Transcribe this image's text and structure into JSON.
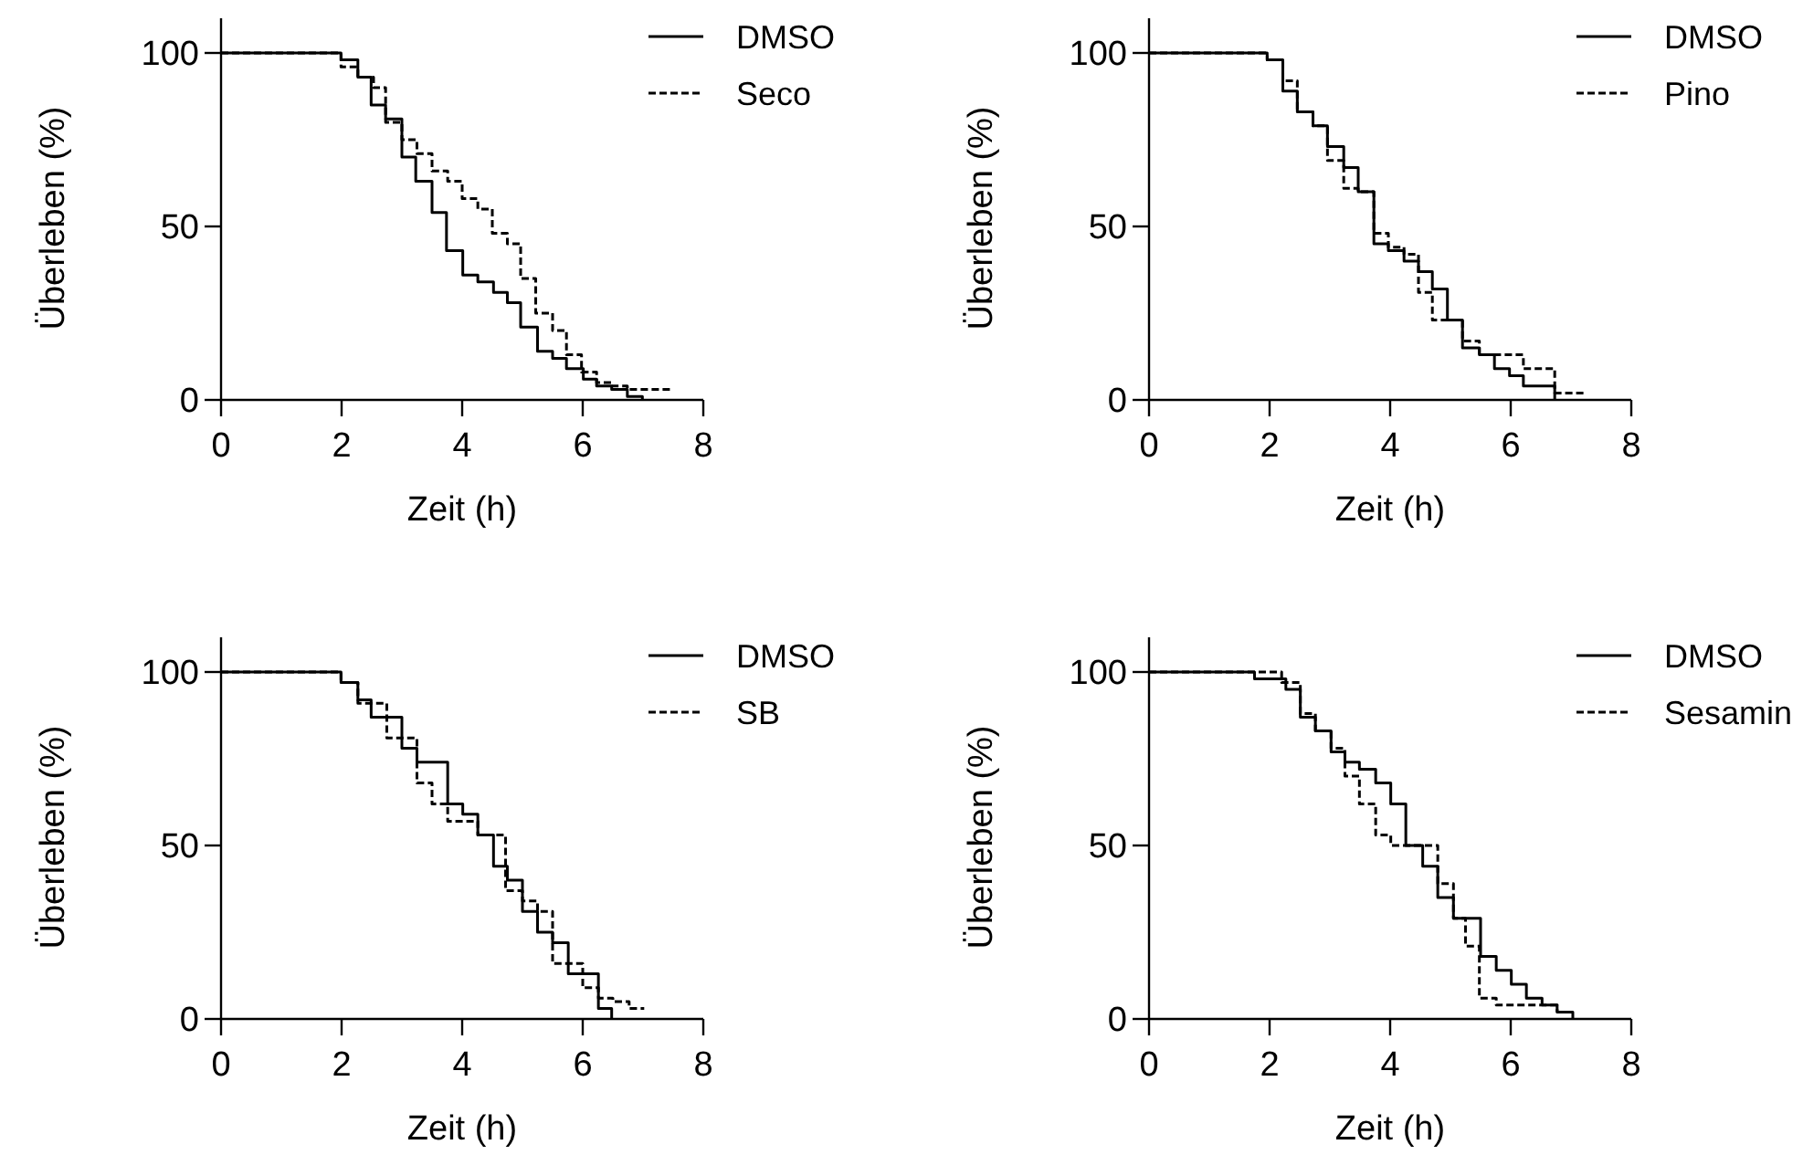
{
  "chart_data": [
    {
      "type": "step",
      "xlabel": "Zeit (h)",
      "ylabel": "Überleben (%)",
      "xlim": [
        0,
        8
      ],
      "xticks": [
        0,
        2,
        4,
        6,
        8
      ],
      "ylim": [
        0,
        110
      ],
      "yticks": [
        0,
        50,
        100
      ],
      "legend": "top right",
      "grid": false,
      "series": [
        {
          "name": "DMSO",
          "color": "#000000",
          "line_style": "solid",
          "x": [
            0,
            1.99,
            2.27,
            2.49,
            2.73,
            3.0,
            3.23,
            3.5,
            3.74,
            4.01,
            4.26,
            4.52,
            4.75,
            4.97,
            5.25,
            5.5,
            5.73,
            6.01,
            6.23,
            6.48,
            6.74,
            6.99
          ],
          "values": [
            100,
            98,
            93,
            85,
            81,
            70,
            63,
            54,
            43,
            36,
            34,
            31,
            28,
            21,
            14,
            12,
            9,
            6,
            4,
            3,
            1,
            0
          ]
        },
        {
          "name": "Seco",
          "color": "#000000",
          "line_style": "dashed",
          "x": [
            0,
            1.99,
            2.27,
            2.53,
            2.73,
            3.0,
            3.25,
            3.5,
            3.76,
            4.0,
            4.26,
            4.5,
            4.75,
            4.97,
            5.22,
            5.5,
            5.73,
            5.98,
            6.23,
            6.48,
            6.74,
            7.5
          ],
          "values": [
            100,
            96,
            93,
            90,
            80,
            75,
            71,
            66,
            63,
            58,
            55,
            48,
            45,
            35,
            25,
            20,
            13,
            8,
            5,
            4,
            3,
            3
          ]
        }
      ]
    },
    {
      "type": "step",
      "xlabel": "Zeit (h)",
      "ylabel": "Überleben (%)",
      "xlim": [
        0,
        8
      ],
      "xticks": [
        0,
        2,
        4,
        6,
        8
      ],
      "ylim": [
        0,
        110
      ],
      "yticks": [
        0,
        50,
        100
      ],
      "legend": "top right",
      "grid": false,
      "series": [
        {
          "name": "DMSO",
          "color": "#000000",
          "line_style": "solid",
          "x": [
            0,
            1.96,
            2.22,
            2.46,
            2.72,
            2.96,
            3.23,
            3.47,
            3.73,
            3.97,
            4.23,
            4.47,
            4.7,
            4.95,
            5.2,
            5.48,
            5.73,
            5.98,
            6.21,
            6.73
          ],
          "values": [
            100,
            98,
            89,
            83,
            79,
            73,
            67,
            60,
            45,
            43,
            40,
            37,
            32,
            23,
            15,
            13,
            9,
            7,
            4,
            0
          ]
        },
        {
          "name": "Pino",
          "color": "#000000",
          "line_style": "dashed",
          "x": [
            0,
            1.96,
            2.22,
            2.46,
            2.72,
            2.96,
            3.23,
            3.47,
            3.73,
            3.97,
            4.23,
            4.47,
            4.7,
            5.2,
            5.48,
            6.21,
            6.73,
            7.22
          ],
          "values": [
            100,
            98,
            92,
            83,
            79,
            69,
            61,
            60,
            48,
            44,
            42,
            31,
            23,
            17,
            13,
            9,
            2,
            2
          ]
        }
      ]
    },
    {
      "type": "step",
      "xlabel": "Zeit (h)",
      "ylabel": "Überleben (%)",
      "xlim": [
        0,
        8
      ],
      "xticks": [
        0,
        2,
        4,
        6,
        8
      ],
      "ylim": [
        0,
        110
      ],
      "yticks": [
        0,
        50,
        100
      ],
      "legend": "top right",
      "grid": false,
      "series": [
        {
          "name": "DMSO",
          "color": "#000000",
          "line_style": "solid",
          "x": [
            0,
            1.99,
            2.27,
            2.49,
            3.0,
            3.25,
            3.76,
            4.01,
            4.26,
            4.52,
            4.75,
            5.0,
            5.25,
            5.5,
            5.76,
            6.26,
            6.48
          ],
          "values": [
            100,
            97,
            92,
            87,
            78,
            74,
            62,
            59,
            53,
            44,
            40,
            31,
            25,
            22,
            13,
            3,
            0
          ]
        },
        {
          "name": "SB",
          "color": "#000000",
          "line_style": "dashed",
          "x": [
            0,
            1.99,
            2.27,
            2.75,
            3.25,
            3.5,
            3.76,
            4.26,
            4.72,
            5.0,
            5.25,
            5.5,
            6.0,
            6.26,
            6.5,
            6.77,
            7.02
          ],
          "values": [
            100,
            97,
            91,
            81,
            68,
            62,
            57,
            53,
            37,
            34,
            31,
            16,
            9,
            6,
            5,
            3,
            3
          ]
        }
      ]
    },
    {
      "type": "step",
      "xlabel": "Zeit (h)",
      "ylabel": "Überleben (%)",
      "xlim": [
        0,
        8
      ],
      "xticks": [
        0,
        2,
        4,
        6,
        8
      ],
      "ylim": [
        0,
        110
      ],
      "yticks": [
        0,
        50,
        100
      ],
      "legend": "top right",
      "grid": false,
      "series": [
        {
          "name": "DMSO",
          "color": "#000000",
          "line_style": "solid",
          "x": [
            0,
            1.75,
            2.27,
            2.51,
            2.76,
            3.02,
            3.25,
            3.49,
            3.76,
            4.01,
            4.26,
            4.54,
            4.79,
            5.05,
            5.5,
            5.76,
            6.01,
            6.26,
            6.52,
            6.77,
            7.03
          ],
          "values": [
            100,
            98,
            95,
            87,
            83,
            77,
            74,
            72,
            68,
            62,
            50,
            44,
            35,
            29,
            18,
            14,
            10,
            6,
            4,
            2,
            0
          ]
        },
        {
          "name": "Sesamin",
          "color": "#000000",
          "line_style": "dashed",
          "x": [
            0,
            2.2,
            2.51,
            2.76,
            3.02,
            3.25,
            3.49,
            3.76,
            4.01,
            4.79,
            5.05,
            5.25,
            5.48,
            5.76,
            6.77
          ],
          "values": [
            100,
            97,
            88,
            83,
            78,
            70,
            62,
            53,
            50,
            39,
            29,
            21,
            6,
            4,
            2
          ]
        }
      ]
    }
  ]
}
